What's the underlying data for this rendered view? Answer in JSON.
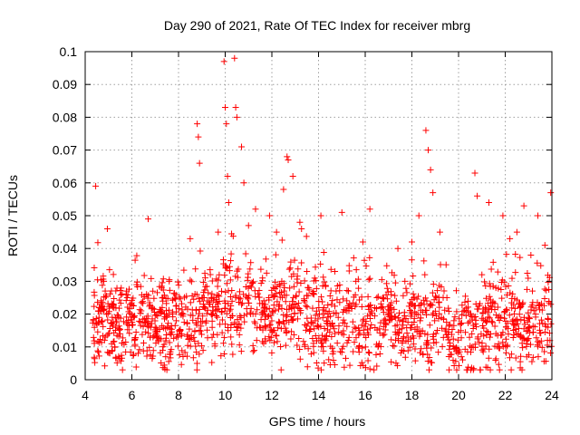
{
  "chart_data": {
    "type": "scatter",
    "title": "Day 290 of 2021, Rate Of TEC Index for receiver mbrg",
    "xlabel": "GPS time / hours",
    "ylabel": "ROTI / TECUs",
    "xlim": [
      4,
      24
    ],
    "ylim": [
      0,
      0.1
    ],
    "x_ticks": [
      4,
      6,
      8,
      10,
      12,
      14,
      16,
      18,
      20,
      22,
      24
    ],
    "x_tick_labels": [
      "4",
      "6",
      "8",
      "10",
      "12",
      "14",
      "16",
      "18",
      "20",
      "22",
      "24"
    ],
    "y_ticks": [
      0,
      0.01,
      0.02,
      0.03,
      0.04,
      0.05,
      0.06,
      0.07,
      0.08,
      0.09,
      0.1
    ],
    "y_tick_labels": [
      "0",
      "0.01",
      "0.02",
      "0.03",
      "0.04",
      "0.05",
      "0.06",
      "0.07",
      "0.08",
      "0.09",
      "0.1"
    ],
    "grid": true,
    "marker": "plus",
    "color": "#ff0000",
    "series": [
      {
        "x": [
          4.35,
          4.45,
          4.6,
          4.8,
          4.95,
          5.2,
          5.5,
          5.8,
          6.1,
          6.4,
          6.7,
          7.0,
          7.3,
          7.6,
          7.9,
          8.2,
          8.5,
          8.8,
          8.85,
          8.9,
          9.1,
          9.4,
          9.7,
          9.95,
          10.0,
          10.05,
          10.1,
          10.15,
          10.4,
          10.45,
          10.5,
          10.7,
          10.8,
          11.0,
          11.3,
          11.6,
          11.9,
          12.2,
          12.5,
          12.65,
          12.7,
          12.9,
          13.2,
          13.5,
          13.8,
          14.1,
          14.4,
          14.7,
          15.0,
          15.3,
          15.6,
          15.9,
          16.2,
          16.5,
          16.8,
          17.1,
          17.4,
          17.7,
          18.0,
          18.3,
          18.6,
          18.7,
          18.8,
          18.9,
          19.2,
          19.5,
          19.8,
          20.1,
          20.4,
          20.7,
          20.8,
          21.0,
          21.3,
          21.6,
          21.9,
          22.2,
          22.5,
          22.8,
          23.1,
          23.4,
          23.7,
          23.95
        ],
        "y": [
          0.018,
          0.059,
          0.022,
          0.03,
          0.046,
          0.017,
          0.014,
          0.025,
          0.019,
          0.021,
          0.049,
          0.016,
          0.022,
          0.03,
          0.018,
          0.02,
          0.043,
          0.078,
          0.074,
          0.066,
          0.025,
          0.02,
          0.045,
          0.097,
          0.083,
          0.078,
          0.062,
          0.054,
          0.098,
          0.083,
          0.08,
          0.071,
          0.06,
          0.047,
          0.052,
          0.031,
          0.05,
          0.045,
          0.058,
          0.068,
          0.067,
          0.062,
          0.048,
          0.033,
          0.026,
          0.05,
          0.02,
          0.033,
          0.051,
          0.021,
          0.03,
          0.042,
          0.052,
          0.025,
          0.018,
          0.022,
          0.04,
          0.03,
          0.042,
          0.05,
          0.076,
          0.07,
          0.064,
          0.057,
          0.045,
          0.025,
          0.018,
          0.015,
          0.021,
          0.063,
          0.056,
          0.032,
          0.054,
          0.028,
          0.05,
          0.043,
          0.045,
          0.053,
          0.038,
          0.05,
          0.041,
          0.057
        ]
      }
    ]
  }
}
